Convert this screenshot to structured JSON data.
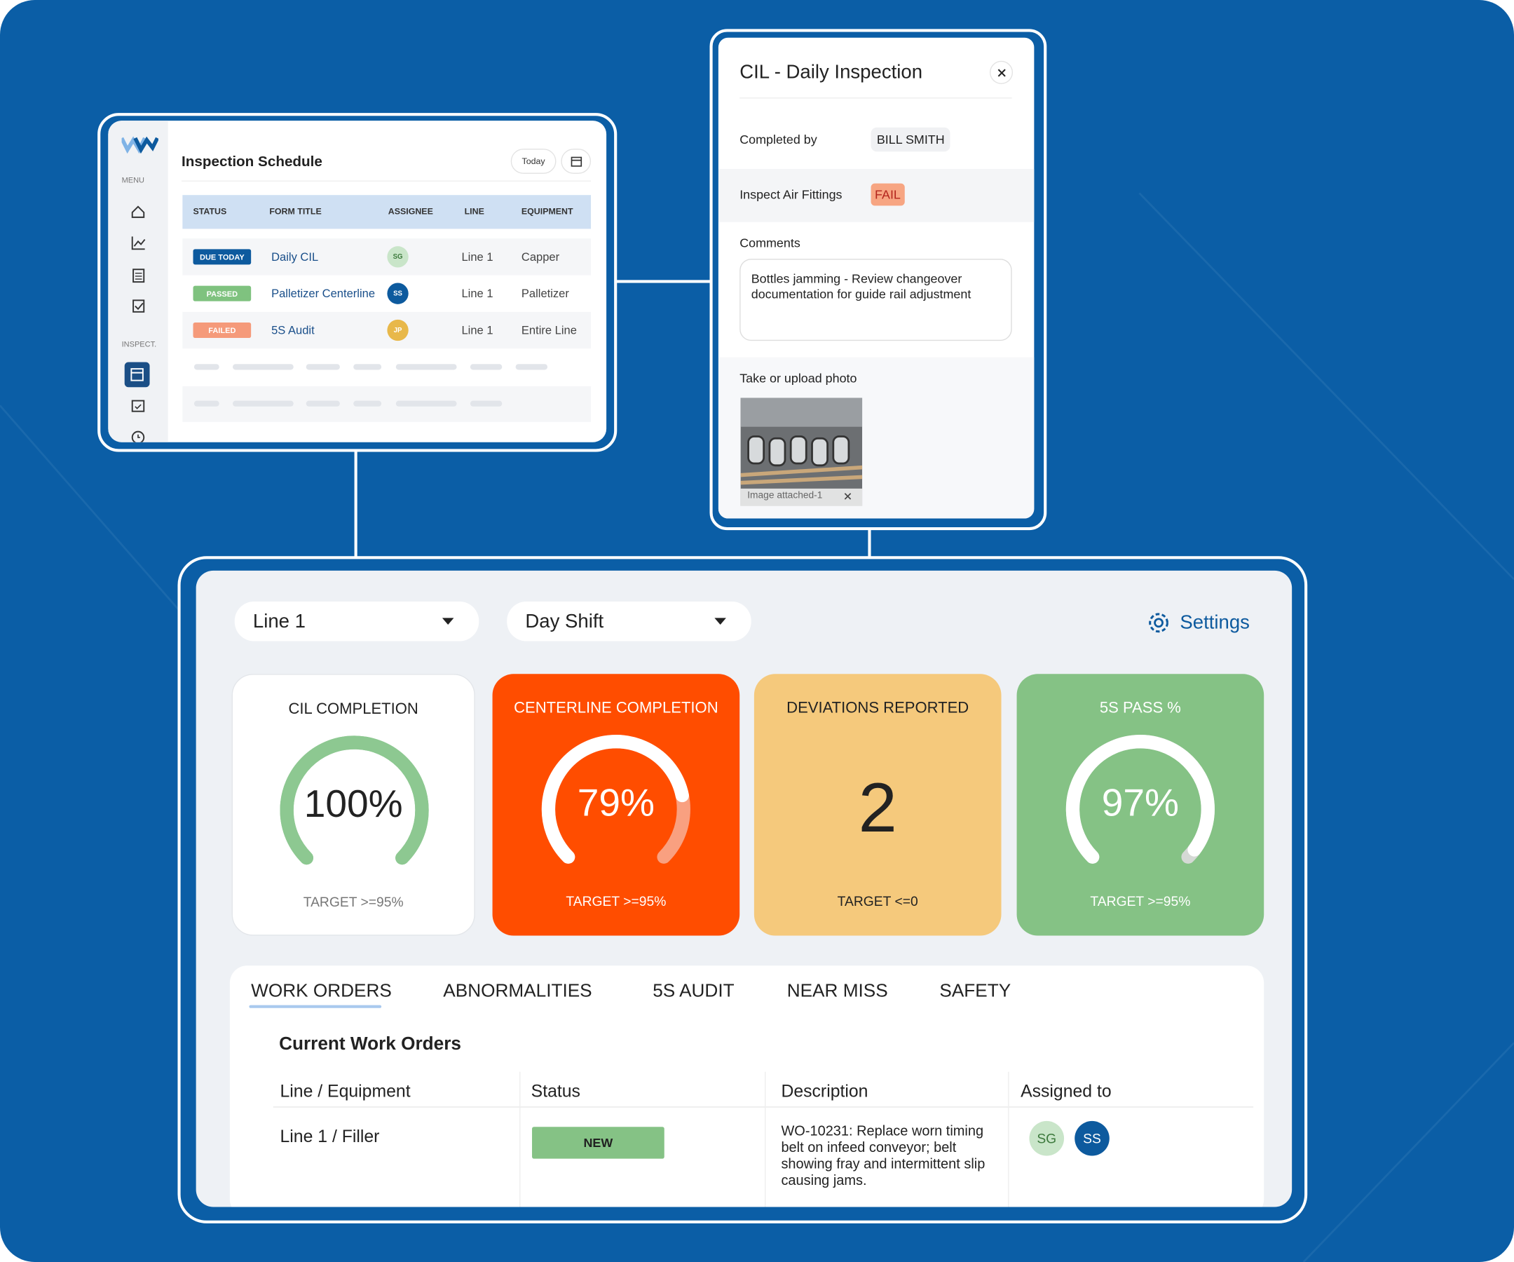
{
  "schedule": {
    "menu_label": "MENU",
    "inspect_label": "INSPECT.",
    "title": "Inspection Schedule",
    "today_button": "Today",
    "columns": [
      "STATUS",
      "FORM TITLE",
      "ASSIGNEE",
      "LINE",
      "EQUIPMENT"
    ],
    "rows": [
      {
        "status": "DUE TODAY",
        "form_title": "Daily CIL",
        "assignee": "SG",
        "line": "Line 1",
        "equipment": "Capper"
      },
      {
        "status": "PASSED",
        "form_title": "Palletizer Centerline",
        "assignee": "SS",
        "line": "Line 1",
        "equipment": "Palletizer"
      },
      {
        "status": "FAILED",
        "form_title": "5S Audit",
        "assignee": "JP",
        "line": "Line 1",
        "equipment": "Entire Line"
      }
    ]
  },
  "inspection": {
    "title": "CIL - Daily Inspection",
    "completed_by_label": "Completed by",
    "completed_by": "BILL SMITH",
    "item": "Inspect Air Fittings",
    "item_result": "FAIL",
    "comments_label": "Comments",
    "comments": "Bottles jamming - Review changeover documentation for guide rail adjustment",
    "photo_label": "Take or upload photo",
    "attachment": "Image attached-1"
  },
  "dashboard": {
    "line_select": "Line 1",
    "shift_select": "Day Shift",
    "settings": "Settings",
    "kpis": [
      {
        "title": "CIL COMPLETION",
        "value": 100,
        "value_label": "100%",
        "target": "TARGET >=95%"
      },
      {
        "title": "CENTERLINE COMPLETION",
        "value": 79,
        "value_label": "79%",
        "target": "TARGET >=95%"
      },
      {
        "title": "DEVIATIONS REPORTED",
        "value": 2,
        "target": "TARGET <=0"
      },
      {
        "title": "5S PASS %",
        "value": 97,
        "value_label": "97%",
        "target": "TARGET >=95%"
      }
    ],
    "tabs": [
      "WORK ORDERS",
      "ABNORMALITIES",
      "5S AUDIT",
      "NEAR MISS",
      "SAFETY"
    ],
    "section_title": "Current Work Orders",
    "columns": [
      "Line / Equipment",
      "Status",
      "Description",
      "Assigned to"
    ],
    "rows": [
      {
        "line_equipment": "Line 1 / Filler",
        "status": "NEW",
        "description": "WO-10231: Replace worn timing belt on infeed conveyor; belt showing fray and intermittent slip causing jams.",
        "assigned_to": [
          "SG",
          "SS"
        ]
      }
    ]
  }
}
